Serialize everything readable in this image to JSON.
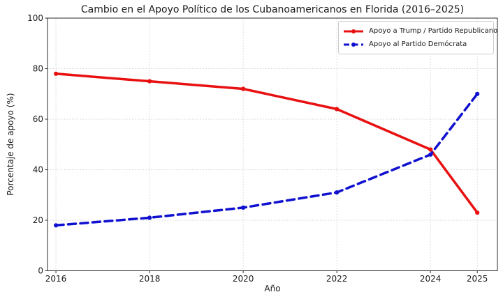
{
  "chart_data": {
    "type": "line",
    "title": "Cambio en el Apoyo Político de los Cubanoamericanos en Florida (2016–2025)",
    "xlabel": "Año",
    "ylabel": "Porcentaje de apoyo (%)",
    "x": [
      2016,
      2018,
      2020,
      2022,
      2024,
      2025
    ],
    "xtick_labels": [
      "2016",
      "2018",
      "2020",
      "2022",
      "2024",
      "2025"
    ],
    "yticks": [
      0,
      20,
      40,
      60,
      80,
      100
    ],
    "xlim": [
      2015.82,
      2025.43
    ],
    "ylim": [
      0,
      100
    ],
    "grid": true,
    "grid_style": "dotted",
    "legend_position": "upper-right",
    "series": [
      {
        "name": "Apoyo a Trump / Partido Republicano",
        "color": "#e81010",
        "line_style": "solid",
        "marker": "circle",
        "values": [
          78,
          75,
          72,
          64,
          48,
          23
        ]
      },
      {
        "name": "Apoyo al Partido Demócrata",
        "color": "#1010d0",
        "line_style": "dashed",
        "marker": "circle",
        "values": [
          18,
          21,
          25,
          31,
          46,
          70
        ]
      }
    ]
  }
}
